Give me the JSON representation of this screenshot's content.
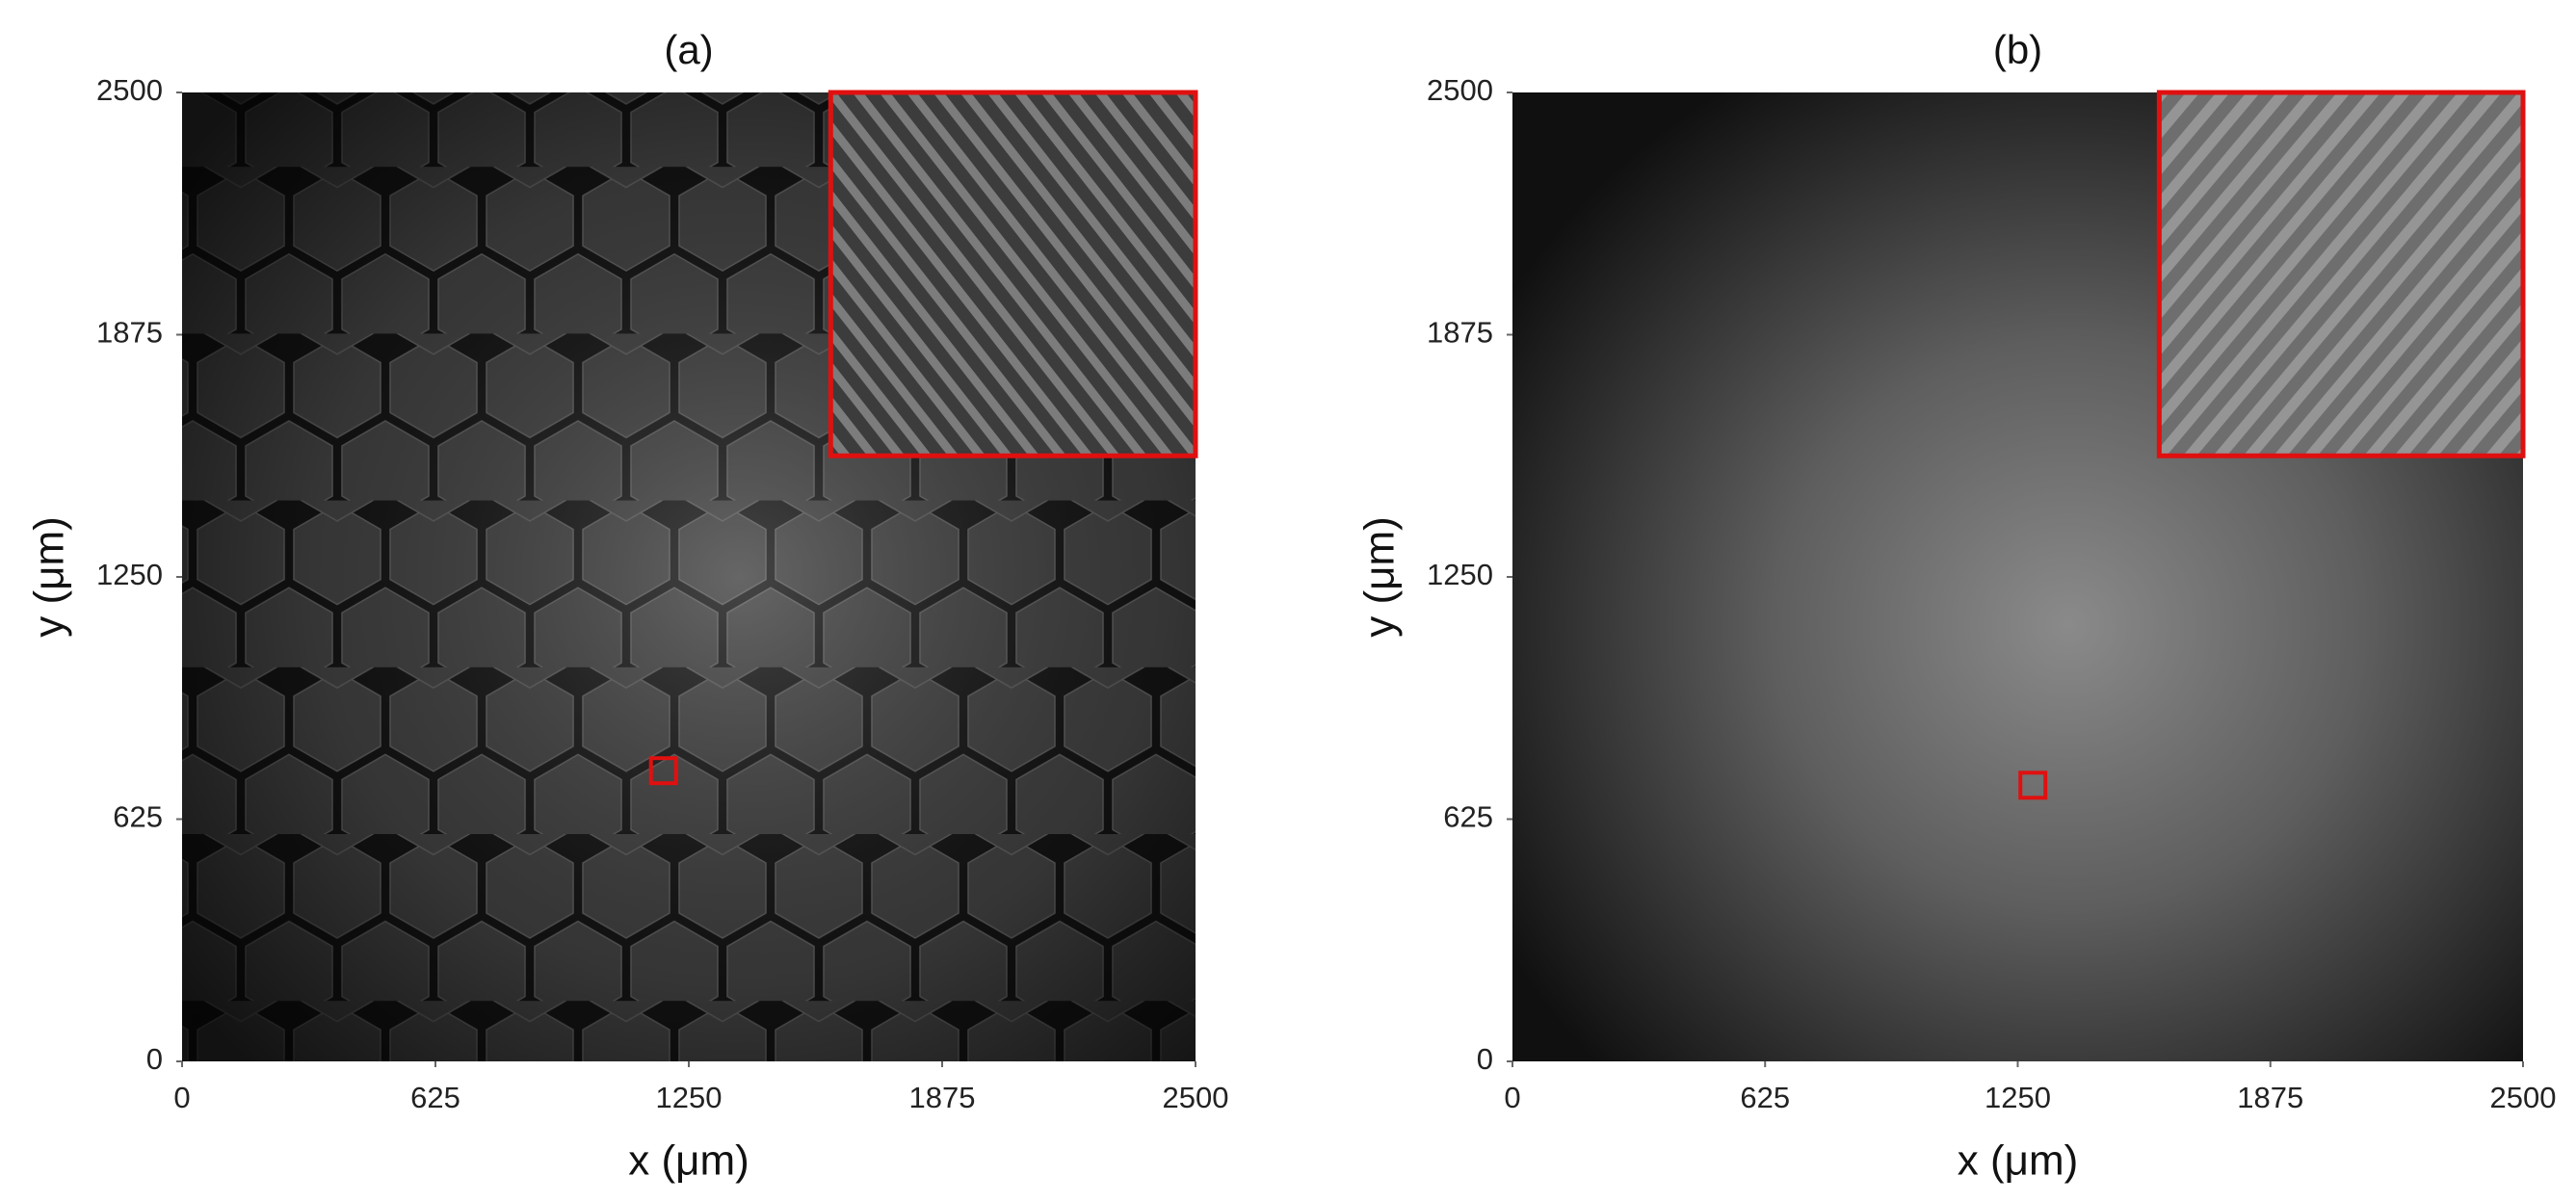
{
  "chart_data": [
    {
      "type": "image",
      "title": "(a)",
      "x_label": "x (μm)",
      "y_label": "y (μm)",
      "xlim": [
        0,
        2500
      ],
      "ylim": [
        0,
        2500
      ],
      "xticks": [
        0,
        625,
        1250,
        1875,
        2500
      ],
      "yticks": [
        0,
        625,
        1250,
        1875,
        2500
      ]
    },
    {
      "type": "image",
      "title": "(b)",
      "x_label": "x (μm)",
      "y_label": "y (μm)",
      "xlim": [
        0,
        2500
      ],
      "ylim": [
        0,
        2500
      ],
      "xticks": [
        0,
        625,
        1250,
        1875,
        2500
      ],
      "yticks": [
        0,
        625,
        1250,
        1875,
        2500
      ]
    }
  ]
}
